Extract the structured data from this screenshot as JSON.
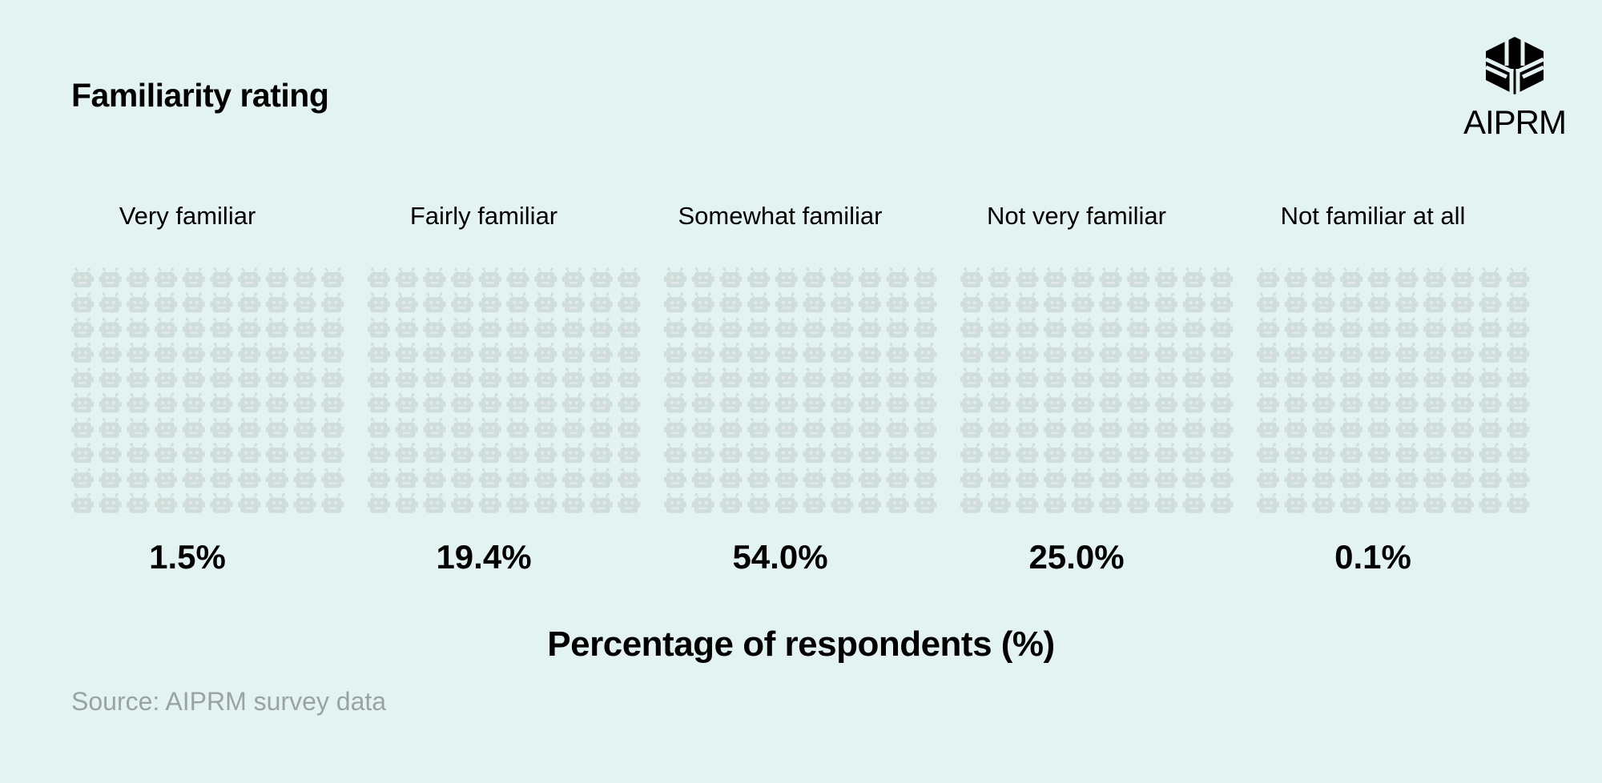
{
  "title": "Familiarity rating",
  "logo": {
    "text": "AIPRM"
  },
  "chart_data": {
    "type": "waffle",
    "title": "Familiarity rating",
    "categories": [
      "Very familiar",
      "Fairly familiar",
      "Somewhat familiar",
      "Not very familiar",
      "Not familiar at all"
    ],
    "values": [
      1.5,
      19.4,
      54.0,
      25.0,
      0.1
    ],
    "value_labels": [
      "1.5%",
      "19.4%",
      "54.0%",
      "25.0%",
      "0.1%"
    ],
    "grid": {
      "rows": 10,
      "cols": 10,
      "icon": "robot-icon",
      "units_per_icon": 1
    },
    "colors": [
      "#0e8a74",
      "#7a9431",
      "#f59d00",
      "#f5660e"
    ],
    "empty_color": "#d0dedb",
    "xlabel": "Percentage of respondents (%)"
  },
  "source": "Source: AIPRM survey data",
  "colors": {
    "background": "#e2f3f1",
    "text": "#000000",
    "source": "#9aa3a3"
  }
}
